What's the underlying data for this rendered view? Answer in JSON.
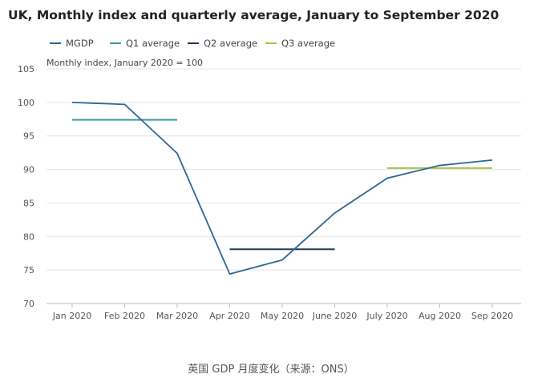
{
  "chart_data": {
    "type": "line",
    "title": "UK, Monthly index and quarterly average, January to September 2020",
    "ylabel": "Monthly index, January 2020 = 100",
    "xlabel": "",
    "categories": [
      "Jan 2020",
      "Feb 2020",
      "Mar 2020",
      "Apr 2020",
      "May 2020",
      "June 2020",
      "July 2020",
      "Aug 2020",
      "Sep 2020"
    ],
    "ylim": [
      70,
      105
    ],
    "yticks": [
      "70",
      "75",
      "80",
      "85",
      "90",
      "95",
      "100",
      "105"
    ],
    "grid": true,
    "legend_position": "top-left",
    "series": [
      {
        "name": "MGDP",
        "color": "#2c6694",
        "values": [
          100.0,
          99.7,
          92.4,
          74.4,
          76.5,
          83.5,
          88.7,
          90.6,
          91.4
        ]
      },
      {
        "name": "Q1 average",
        "color": "#3b9a9a",
        "from": "Jan 2020",
        "to": "Mar 2020",
        "value": 97.4
      },
      {
        "name": "Q2 average",
        "color": "#1f3b57",
        "from": "Apr 2020",
        "to": "June 2020",
        "value": 78.1
      },
      {
        "name": "Q3 average",
        "color": "#a5c243",
        "from": "July 2020",
        "to": "Sep 2020",
        "value": 90.2
      }
    ]
  },
  "caption": "英国 GDP 月度变化（来源：ONS）"
}
